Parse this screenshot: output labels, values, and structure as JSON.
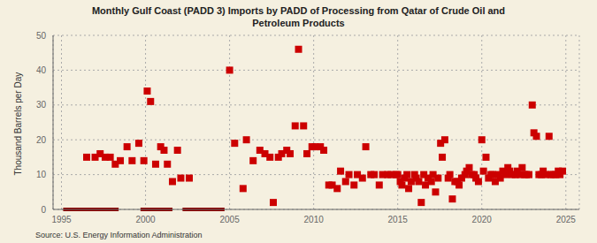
{
  "chart_data": {
    "type": "scatter",
    "title": "Monthly Gulf Coast (PADD 3) Imports by PADD of Processing from Qatar of Crude Oil and\nPetroleum Products",
    "ylabel": "Thousand Barrels per Day",
    "source": "Source: U.S. Energy Information Administration",
    "background_color": "#f5f0e0",
    "color": "#cc0000",
    "marker": "square",
    "zero_bar_color": "#8b0000",
    "grid": true,
    "xlim": [
      1994.5,
      2025.8
    ],
    "ylim": [
      0,
      50
    ],
    "xticks": [
      1995,
      2000,
      2005,
      2010,
      2015,
      2020,
      2025
    ],
    "yticks": [
      0,
      10,
      20,
      30,
      40,
      50
    ],
    "x": [
      1996.5,
      1997.0,
      1997.3,
      1997.6,
      1997.9,
      1998.2,
      1998.5,
      1998.9,
      1999.2,
      1999.6,
      1999.9,
      2000.1,
      2000.3,
      2000.6,
      2000.9,
      2001.1,
      2001.3,
      2001.6,
      2001.9,
      2002.1,
      2002.6,
      2005.0,
      2005.3,
      2005.8,
      2006.0,
      2006.4,
      2006.8,
      2007.1,
      2007.4,
      2007.6,
      2007.9,
      2008.1,
      2008.4,
      2008.6,
      2008.9,
      2009.1,
      2009.4,
      2009.6,
      2009.9,
      2010.1,
      2010.4,
      2010.6,
      2010.9,
      2011.1,
      2011.4,
      2011.6,
      2011.9,
      2012.1,
      2012.4,
      2012.6,
      2012.9,
      2013.1,
      2013.4,
      2013.6,
      2013.9,
      2014.1,
      2014.4,
      2014.6,
      2014.9,
      2015.0,
      2015.15,
      2015.25,
      2015.4,
      2015.55,
      2015.65,
      2015.8,
      2016.0,
      2016.1,
      2016.25,
      2016.4,
      2016.55,
      2016.65,
      2016.8,
      2017.0,
      2017.1,
      2017.25,
      2017.4,
      2017.55,
      2017.65,
      2017.8,
      2018.0,
      2018.1,
      2018.25,
      2018.4,
      2018.55,
      2018.65,
      2018.8,
      2019.0,
      2019.1,
      2019.25,
      2019.4,
      2019.55,
      2019.65,
      2019.8,
      2020.0,
      2020.1,
      2020.25,
      2020.4,
      2020.55,
      2020.65,
      2020.8,
      2021.0,
      2021.1,
      2021.25,
      2021.4,
      2021.55,
      2021.65,
      2021.8,
      2022.0,
      2022.1,
      2022.25,
      2022.4,
      2022.55,
      2022.65,
      2022.8,
      2023.0,
      2023.1,
      2023.25,
      2023.4,
      2023.55,
      2023.65,
      2023.8,
      2024.0,
      2024.1,
      2024.25,
      2024.4,
      2024.55,
      2024.65,
      2024.8
    ],
    "values": [
      15,
      15,
      16,
      15,
      15,
      13,
      14,
      18,
      14,
      19,
      14,
      34,
      31,
      13,
      18,
      17,
      13,
      8,
      17,
      9,
      9,
      40,
      19,
      6,
      20,
      14,
      17,
      16,
      15,
      2,
      15,
      16,
      17,
      16,
      24,
      46,
      24,
      16,
      18,
      18,
      18,
      17,
      7,
      7,
      6,
      11,
      8,
      10,
      7,
      10,
      9,
      18,
      10,
      10,
      7,
      10,
      10,
      10,
      10,
      10,
      8,
      7,
      9,
      10,
      6,
      8,
      10,
      9,
      8,
      2,
      10,
      7,
      9,
      8,
      10,
      5,
      9,
      19,
      15,
      20,
      9,
      10,
      3,
      8,
      8,
      7,
      9,
      10,
      11,
      12,
      10,
      10,
      9,
      8,
      20,
      11,
      15,
      9,
      10,
      10,
      8,
      10,
      9,
      11,
      10,
      12,
      11,
      10,
      10,
      11,
      10,
      12,
      10,
      10,
      10,
      30,
      22,
      21,
      10,
      10,
      11,
      10,
      21,
      10,
      10,
      10,
      11,
      10,
      11
    ],
    "zero_bars": [
      [
        1995.1,
        1998.4
      ],
      [
        1999.7,
        2001.6
      ],
      [
        2002.2,
        2004.7
      ]
    ]
  }
}
